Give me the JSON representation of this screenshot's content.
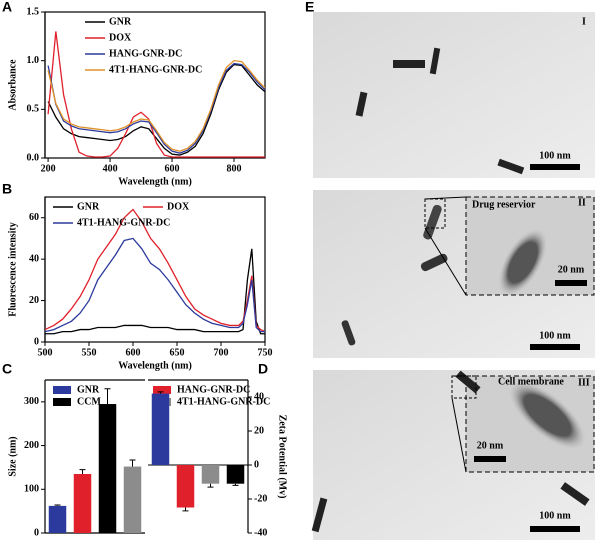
{
  "chart_data": [
    {
      "type": "line",
      "label": "A",
      "xlabel": "Wavelength (nm)",
      "ylabel": "Absorbance",
      "legend": "upper center",
      "legend_columns": 1,
      "x": [
        200,
        225,
        250,
        275,
        300,
        325,
        350,
        375,
        400,
        425,
        450,
        475,
        500,
        525,
        550,
        575,
        600,
        625,
        650,
        675,
        700,
        725,
        750,
        775,
        800,
        825,
        850,
        875,
        900
      ],
      "xlim": [
        190,
        900
      ],
      "ylim": [
        0,
        1.5
      ],
      "xticks": [
        200,
        400,
        600,
        800
      ],
      "yticks": [
        {
          "value": 0,
          "label": "0.0"
        },
        {
          "value": 0.5,
          "label": "0.5"
        },
        {
          "value": 1,
          "label": "1.0"
        },
        {
          "value": 1.5,
          "label": "1.5"
        }
      ],
      "series": [
        {
          "name": "GNR",
          "color": "#000000",
          "values": [
            0.58,
            0.42,
            0.3,
            0.25,
            0.22,
            0.21,
            0.2,
            0.19,
            0.18,
            0.19,
            0.22,
            0.28,
            0.32,
            0.3,
            0.2,
            0.1,
            0.04,
            0.03,
            0.06,
            0.12,
            0.25,
            0.45,
            0.7,
            0.88,
            0.96,
            0.95,
            0.85,
            0.75,
            0.68
          ]
        },
        {
          "name": "DOX",
          "color": "#e0202a",
          "values": [
            0.45,
            1.3,
            0.65,
            0.3,
            0.06,
            0.02,
            0.01,
            0.01,
            0.02,
            0.1,
            0.25,
            0.42,
            0.47,
            0.4,
            0.15,
            0.03,
            0.01,
            0.01,
            0.01,
            0.01,
            0.01,
            0.01,
            0.01,
            0.01,
            0.01,
            0.01,
            0.01,
            0.01,
            0.01
          ]
        },
        {
          "name": "HANG-GNR-DC",
          "color": "#2b3a9c",
          "values": [
            0.95,
            0.55,
            0.38,
            0.33,
            0.3,
            0.29,
            0.28,
            0.27,
            0.26,
            0.27,
            0.3,
            0.35,
            0.38,
            0.37,
            0.26,
            0.14,
            0.07,
            0.05,
            0.08,
            0.15,
            0.28,
            0.48,
            0.72,
            0.9,
            0.97,
            0.96,
            0.88,
            0.78,
            0.7
          ]
        },
        {
          "name": "4T1-HANG-GNR-DC",
          "color": "#e0922a",
          "values": [
            0.9,
            0.56,
            0.4,
            0.35,
            0.32,
            0.31,
            0.3,
            0.29,
            0.28,
            0.29,
            0.32,
            0.37,
            0.4,
            0.39,
            0.28,
            0.16,
            0.09,
            0.07,
            0.1,
            0.17,
            0.3,
            0.5,
            0.75,
            0.93,
            1.0,
            0.99,
            0.9,
            0.8,
            0.72
          ]
        }
      ]
    },
    {
      "type": "line",
      "label": "B",
      "xlabel": "Wavelength (nm)",
      "ylabel": "Fluorescence intensity",
      "legend": "upper left",
      "legend_columns": 2,
      "x": [
        500,
        510,
        520,
        530,
        540,
        550,
        560,
        570,
        580,
        590,
        600,
        610,
        620,
        630,
        640,
        650,
        660,
        670,
        680,
        690,
        700,
        710,
        720,
        725,
        730,
        735,
        740,
        745,
        750
      ],
      "xlim": [
        500,
        750
      ],
      "ylim": [
        0,
        70
      ],
      "xticks": [
        500,
        550,
        600,
        650,
        700,
        750
      ],
      "yticks": [
        0,
        20,
        40,
        60
      ],
      "series": [
        {
          "name": "GNR",
          "color": "#000000",
          "values": [
            4,
            4,
            5,
            5,
            6,
            6,
            7,
            7,
            7,
            8,
            8,
            8,
            7,
            7,
            7,
            6,
            6,
            6,
            5,
            5,
            5,
            5,
            5,
            6,
            30,
            45,
            10,
            4,
            4
          ]
        },
        {
          "name": "DOX",
          "color": "#e0202a",
          "values": [
            6,
            8,
            11,
            16,
            22,
            30,
            40,
            46,
            52,
            60,
            64,
            58,
            50,
            45,
            38,
            30,
            22,
            16,
            13,
            11,
            9,
            8,
            8,
            10,
            20,
            32,
            8,
            6,
            5
          ]
        },
        {
          "name": "4T1-HANG-GNR-DC",
          "color": "#2b3a9c",
          "values": [
            5,
            6,
            8,
            10,
            14,
            20,
            30,
            36,
            42,
            49,
            50,
            45,
            38,
            35,
            30,
            24,
            18,
            14,
            11,
            9,
            8,
            7,
            7,
            9,
            18,
            30,
            7,
            5,
            5
          ]
        }
      ]
    },
    {
      "type": "bar",
      "label": "C",
      "ylabel": "Size (nm)",
      "legend": "upper left",
      "legend_columns": 2,
      "ylim": [
        0,
        350
      ],
      "yticks": [
        0,
        100,
        200,
        300
      ],
      "series": [
        {
          "name": "GNR",
          "color": "#2b3a9c",
          "values": [
            62
          ],
          "errors": [
            2
          ]
        },
        {
          "name": "HANG-GNR-DC",
          "color": "#e0202a",
          "values": [
            135
          ],
          "errors": [
            10
          ]
        },
        {
          "name": "CCM",
          "color": "#000000",
          "values": [
            295
          ],
          "errors": [
            35
          ]
        },
        {
          "name": "4T1-HANG-GNR-DC",
          "color": "#8c8c8c",
          "values": [
            152
          ],
          "errors": [
            15
          ]
        }
      ]
    },
    {
      "type": "bar",
      "label": "D",
      "ylabel": "Zeta Potential (Mv)",
      "axis_side": "right",
      "ylim": [
        -40,
        50
      ],
      "yticks": [
        -40,
        -20,
        0,
        20,
        40
      ],
      "values": [
        42,
        -25,
        -11,
        -11
      ],
      "errors": [
        1,
        2,
        2,
        1
      ],
      "colors": [
        "#2b3a9c",
        "#e0202a",
        "#8c8c8c",
        "#000000"
      ]
    }
  ],
  "images": {
    "label": "E",
    "panels": [
      {
        "numeral": "I",
        "scale_bar": "100 nm"
      },
      {
        "numeral": "II",
        "scale_bar": "100 nm",
        "inset_label": "Drug reservior",
        "inset_scale_bar": "20 nm"
      },
      {
        "numeral": "III",
        "scale_bar": "100 nm",
        "inset_label": "Cell membrane",
        "inset_scale_bar": "20 nm"
      }
    ]
  }
}
